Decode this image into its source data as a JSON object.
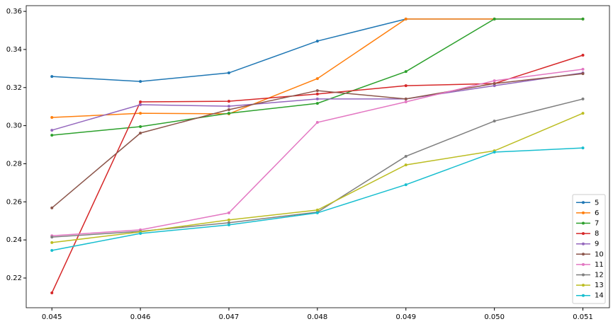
{
  "chart_data": {
    "type": "line",
    "x": [
      0.045,
      0.046,
      0.047,
      0.048,
      0.049,
      0.05,
      0.051
    ],
    "xlim": [
      0.04471,
      0.0513
    ],
    "xticks": [
      0.045,
      0.046,
      0.047,
      0.048,
      0.049,
      {
        "value": 0.05,
        "label": "0.050"
      },
      0.051
    ],
    "ylim": [
      0.2044,
      0.363
    ],
    "yticks": [
      0.22,
      0.24,
      0.26,
      0.28,
      {
        "value": 0.3,
        "label": "0.30"
      },
      0.32,
      0.34,
      0.36
    ],
    "legend": "lower right",
    "series": [
      {
        "name": "5",
        "color": "#1f77b4",
        "values": [
          0.3258,
          0.3232,
          0.3277,
          0.3444,
          0.356,
          0.356,
          0.356
        ]
      },
      {
        "name": "6",
        "color": "#ff7f0e",
        "values": [
          0.3043,
          0.3065,
          0.3062,
          0.3247,
          0.356,
          0.356,
          0.356
        ]
      },
      {
        "name": "7",
        "color": "#2ca02c",
        "values": [
          0.295,
          0.2995,
          0.3065,
          0.3117,
          0.3284,
          0.356,
          0.356
        ]
      },
      {
        "name": "8",
        "color": "#d62728",
        "values": [
          0.2122,
          0.3125,
          0.3128,
          0.3166,
          0.321,
          0.3221,
          0.337
        ]
      },
      {
        "name": "9",
        "color": "#9467bd",
        "values": [
          0.2976,
          0.311,
          0.3102,
          0.314,
          0.314,
          0.321,
          0.3277
        ]
      },
      {
        "name": "10",
        "color": "#8c564b",
        "values": [
          0.2568,
          0.2961,
          0.3084,
          0.3184,
          0.314,
          0.3221,
          0.3273
        ]
      },
      {
        "name": "11",
        "color": "#e377c2",
        "values": [
          0.2422,
          0.2453,
          0.2542,
          0.3017,
          0.3125,
          0.3236,
          0.3296
        ]
      },
      {
        "name": "12",
        "color": "#7f7f7f",
        "values": [
          0.2415,
          0.2445,
          0.249,
          0.2546,
          0.2839,
          0.3024,
          0.314
        ]
      },
      {
        "name": "13",
        "color": "#bcbd22",
        "values": [
          0.2386,
          0.2442,
          0.2505,
          0.2557,
          0.2794,
          0.2868,
          0.3065
        ]
      },
      {
        "name": "14",
        "color": "#17becf",
        "values": [
          0.2345,
          0.2434,
          0.2479,
          0.2542,
          0.269,
          0.2861,
          0.2883
        ]
      }
    ]
  }
}
